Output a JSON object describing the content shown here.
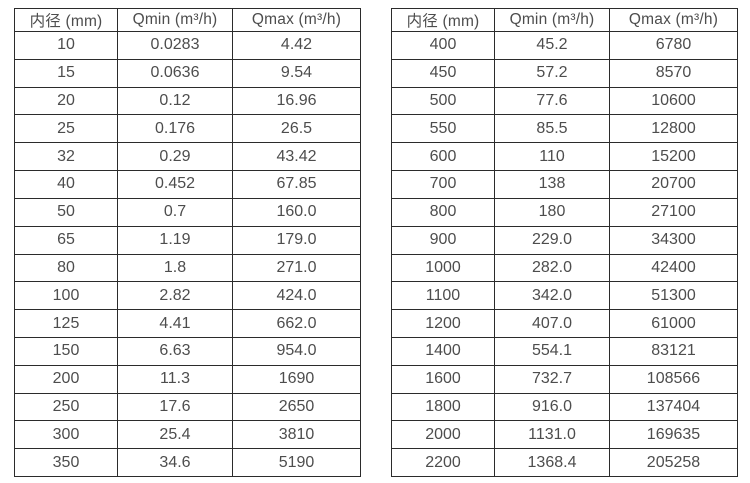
{
  "page": {
    "background_color": "#ffffff",
    "text_color": "#4d4d4d",
    "border_color": "#2b2b2b"
  },
  "tables": [
    {
      "name": "flow-rate-table-small-diameters",
      "headers": [
        "内径 (mm)",
        "Qmin (m³/h)",
        "Qmax (m³/h)"
      ],
      "rows": [
        [
          "10",
          "0.0283",
          "4.42"
        ],
        [
          "15",
          "0.0636",
          "9.54"
        ],
        [
          "20",
          "0.12",
          "16.96"
        ],
        [
          "25",
          "0.176",
          "26.5"
        ],
        [
          "32",
          "0.29",
          "43.42"
        ],
        [
          "40",
          "0.452",
          "67.85"
        ],
        [
          "50",
          "0.7",
          "160.0"
        ],
        [
          "65",
          "1.19",
          "179.0"
        ],
        [
          "80",
          "1.8",
          "271.0"
        ],
        [
          "100",
          "2.82",
          "424.0"
        ],
        [
          "125",
          "4.41",
          "662.0"
        ],
        [
          "150",
          "6.63",
          "954.0"
        ],
        [
          "200",
          "11.3",
          "1690"
        ],
        [
          "250",
          "17.6",
          "2650"
        ],
        [
          "300",
          "25.4",
          "3810"
        ],
        [
          "350",
          "34.6",
          "5190"
        ]
      ]
    },
    {
      "name": "flow-rate-table-large-diameters",
      "headers": [
        "内径 (mm)",
        "Qmin (m³/h)",
        "Qmax (m³/h)"
      ],
      "rows": [
        [
          "400",
          "45.2",
          "6780"
        ],
        [
          "450",
          "57.2",
          "8570"
        ],
        [
          "500",
          "77.6",
          "10600"
        ],
        [
          "550",
          "85.5",
          "12800"
        ],
        [
          "600",
          "110",
          "15200"
        ],
        [
          "700",
          "138",
          "20700"
        ],
        [
          "800",
          "180",
          "27100"
        ],
        [
          "900",
          "229.0",
          "34300"
        ],
        [
          "1000",
          "282.0",
          "42400"
        ],
        [
          "1100",
          "342.0",
          "51300"
        ],
        [
          "1200",
          "407.0",
          "61000"
        ],
        [
          "1400",
          "554.1",
          "83121"
        ],
        [
          "1600",
          "732.7",
          "108566"
        ],
        [
          "1800",
          "916.0",
          "137404"
        ],
        [
          "2000",
          "1131.0",
          "169635"
        ],
        [
          "2200",
          "1368.4",
          "205258"
        ]
      ]
    }
  ]
}
